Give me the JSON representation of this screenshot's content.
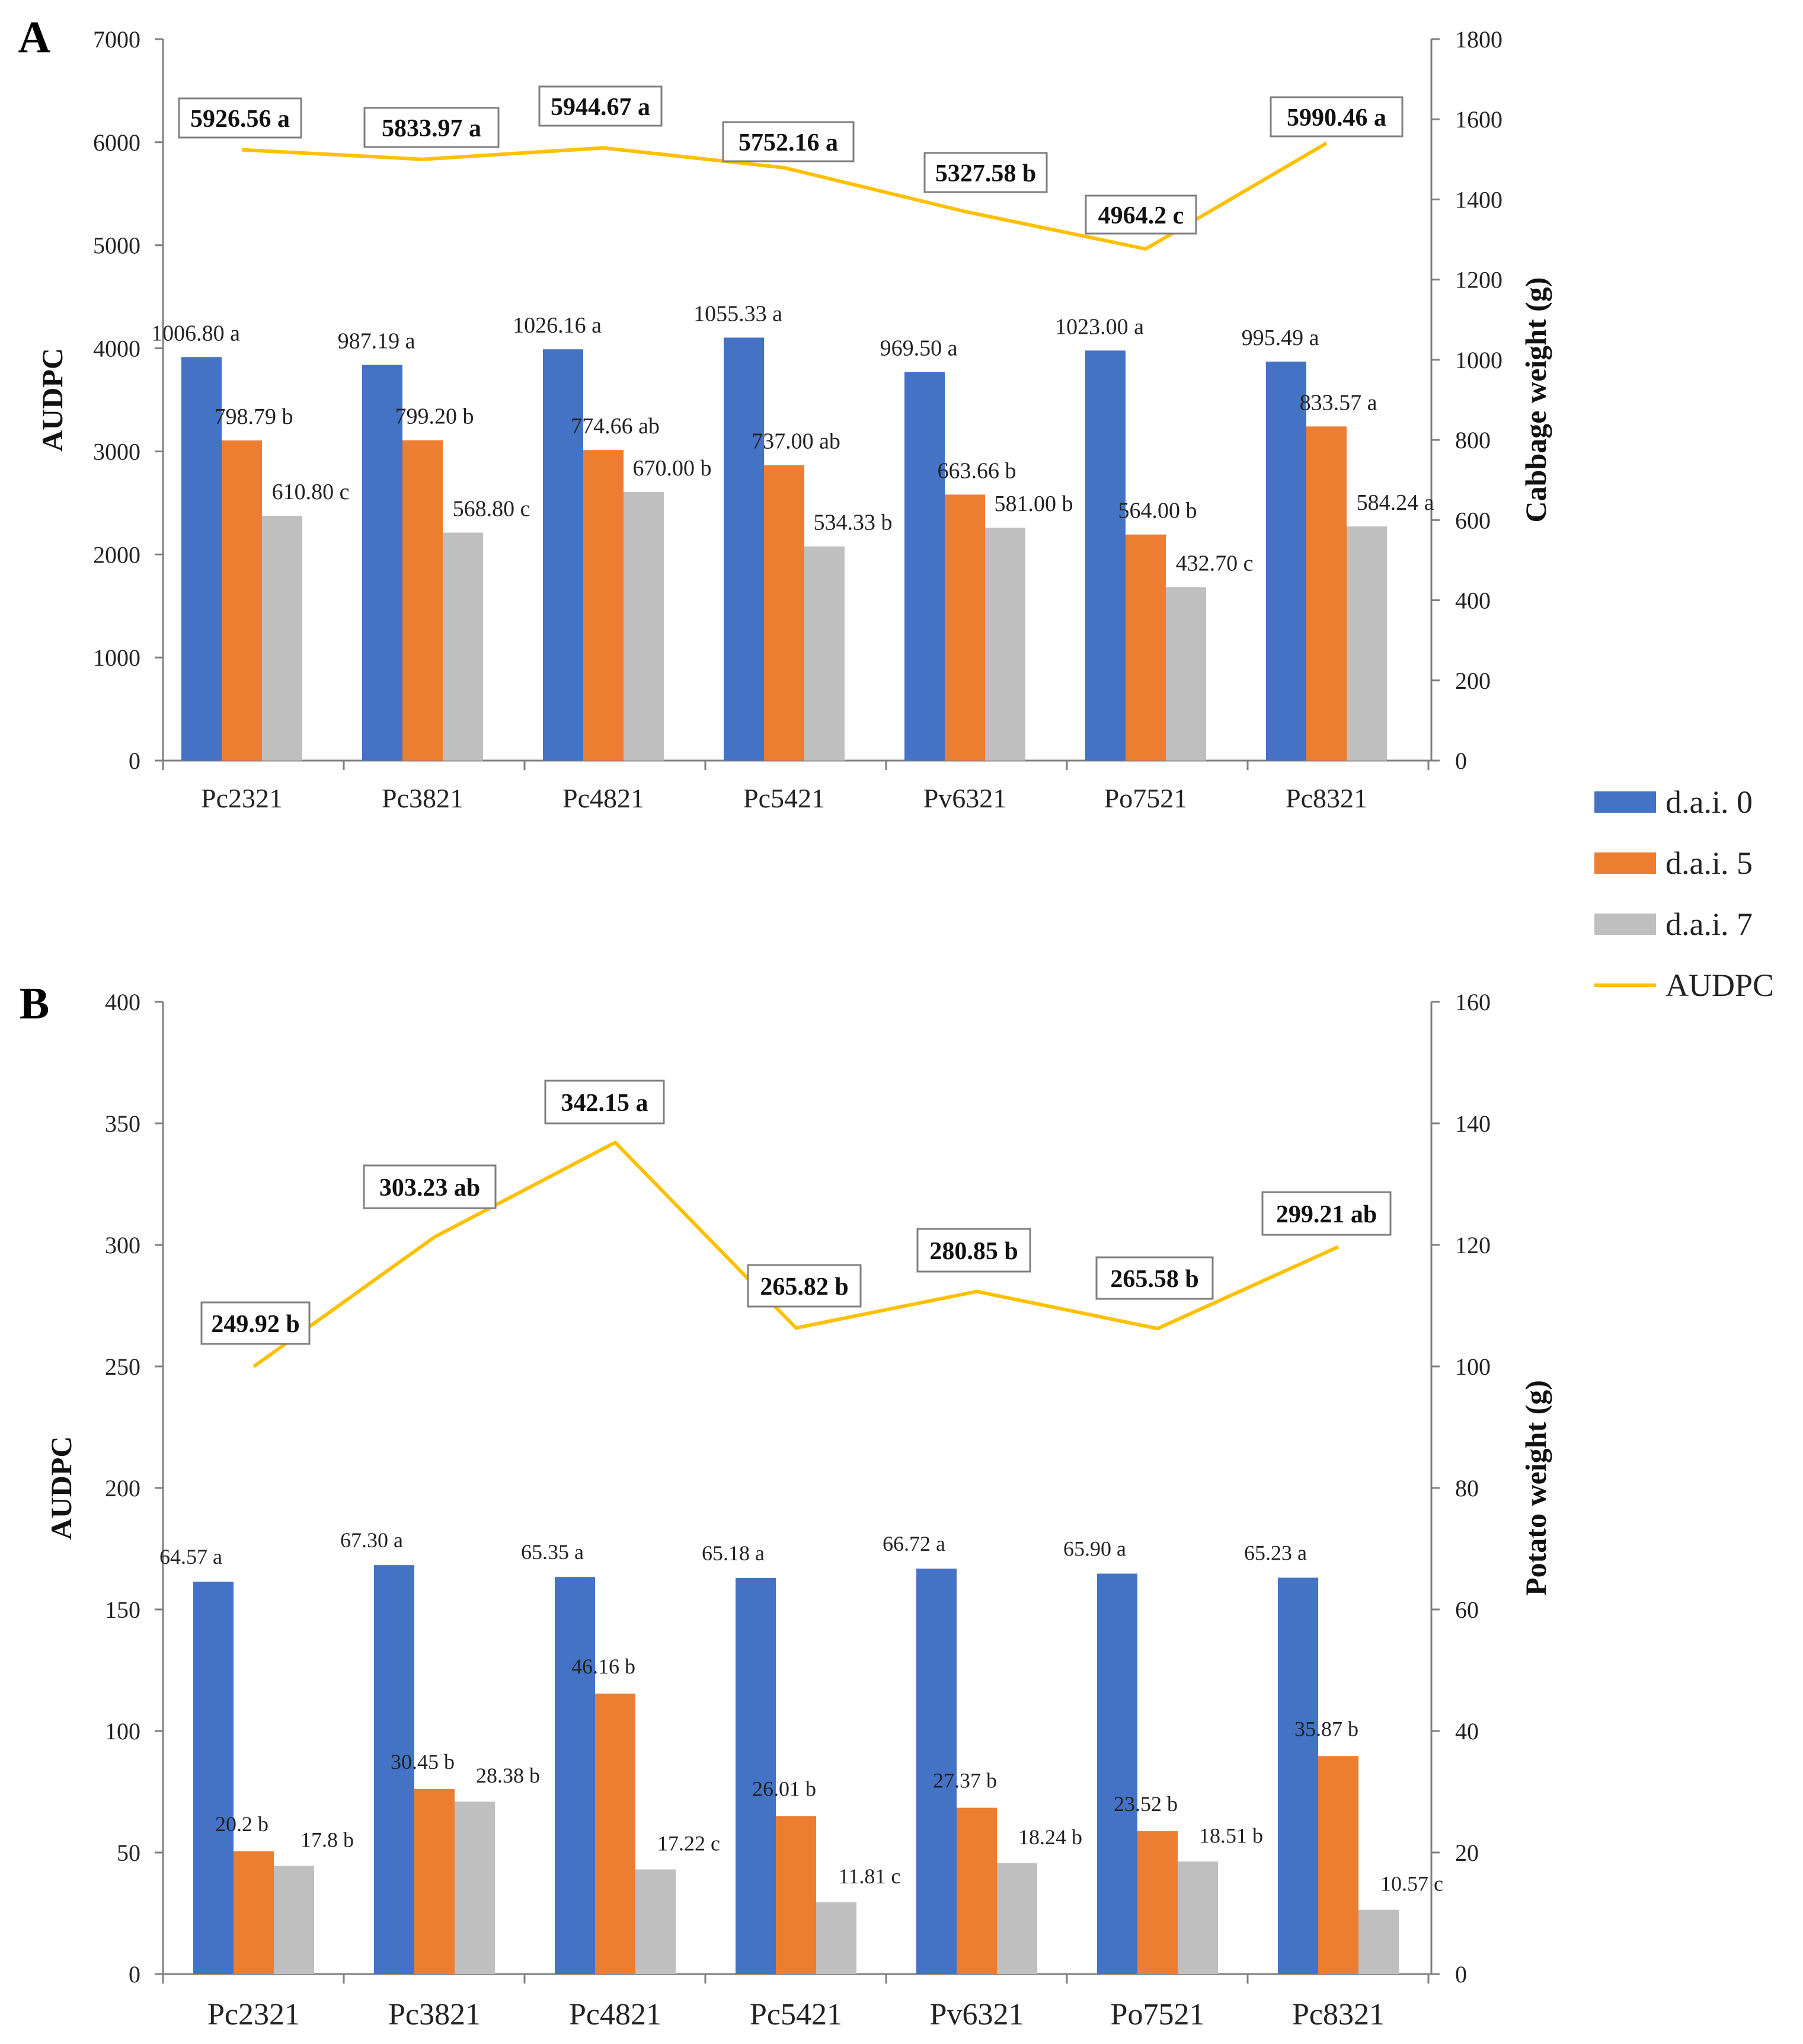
{
  "colors": {
    "dai0": "#4472C4",
    "dai5": "#ED7D31",
    "dai7": "#BFBFBF",
    "audpc": "#FFC000"
  },
  "legend": [
    {
      "key": "dai0",
      "label": "d.a.i. 0",
      "kind": "bar"
    },
    {
      "key": "dai5",
      "label": "d.a.i. 5",
      "kind": "bar"
    },
    {
      "key": "dai7",
      "label": "d.a.i. 7",
      "kind": "bar"
    },
    {
      "key": "audpc",
      "label": "AUDPC",
      "kind": "line"
    }
  ],
  "chart_data": [
    {
      "panel": "A",
      "type": "bar",
      "categories": [
        "Pc2321",
        "Pc3821",
        "Pc4821",
        "Pc5421",
        "Pv6321",
        "Po7521",
        "Pc8321"
      ],
      "ylabel": "AUDPC",
      "ylabel_right": "Cabbage weight (g)",
      "ylim": [
        0,
        7000
      ],
      "yticks": [
        "0",
        "1000",
        "2000",
        "3000",
        "4000",
        "5000",
        "6000",
        "7000"
      ],
      "ylim_right": [
        0,
        1800
      ],
      "yticks_right": [
        "0",
        "200",
        "400",
        "600",
        "800",
        "1000",
        "1200",
        "1400",
        "1600",
        "1800"
      ],
      "series": [
        {
          "key": "dai0",
          "name": "d.a.i. 0",
          "axis": "right",
          "values": [
            1006.8,
            987.19,
            1026.16,
            1055.33,
            969.5,
            1023.0,
            995.49
          ],
          "labels": [
            "1006.80 a",
            "987.19 a",
            "1026.16 a",
            "1055.33 a",
            "969.50 a",
            "1023.00 a",
            "995.49 a"
          ]
        },
        {
          "key": "dai5",
          "name": "d.a.i. 5",
          "axis": "right",
          "values": [
            798.79,
            799.2,
            774.66,
            737.0,
            663.66,
            564.0,
            833.57
          ],
          "labels": [
            "798.79 b",
            "799.20 b",
            "774.66 ab",
            "737.00 ab",
            "663.66 b",
            "564.00 b",
            "833.57 a"
          ]
        },
        {
          "key": "dai7",
          "name": "d.a.i. 7",
          "axis": "right",
          "values": [
            610.8,
            568.8,
            670.0,
            534.33,
            581.0,
            432.7,
            584.24
          ],
          "labels": [
            "610.80 c",
            "568.80 c",
            "670.00 b",
            "534.33 b",
            "581.00 b",
            "432.70 c",
            "584.24 a"
          ]
        },
        {
          "key": "audpc",
          "name": "AUDPC",
          "type": "line",
          "axis": "left",
          "values": [
            5926.56,
            5833.97,
            5944.67,
            5752.16,
            5327.58,
            4964.2,
            5990.46
          ],
          "labels": [
            "5926.56 a",
            "5833.97 a",
            "5944.67 a",
            "5752.16 a",
            "5327.58 b",
            "4964.2 c",
            "5990.46 a"
          ]
        }
      ]
    },
    {
      "panel": "B",
      "type": "bar",
      "categories": [
        "Pc2321",
        "Pc3821",
        "Pc4821",
        "Pc5421",
        "Pv6321",
        "Po7521",
        "Pc8321"
      ],
      "ylabel": "AUDPC",
      "ylabel_right": "Potato weight (g)",
      "ylim": [
        0,
        400
      ],
      "yticks": [
        "0",
        "50",
        "100",
        "150",
        "200",
        "250",
        "300",
        "350",
        "400"
      ],
      "ylim_right": [
        0,
        160
      ],
      "yticks_right": [
        "0",
        "20",
        "40",
        "60",
        "80",
        "100",
        "120",
        "140",
        "160"
      ],
      "series": [
        {
          "key": "dai0",
          "name": "d.a.i. 0",
          "axis": "right",
          "values": [
            64.57,
            67.3,
            65.35,
            65.18,
            66.72,
            65.9,
            65.23
          ],
          "labels": [
            "64.57 a",
            "67.30 a",
            "65.35 a",
            "65.18 a",
            "66.72 a",
            "65.90 a",
            "65.23 a"
          ]
        },
        {
          "key": "dai5",
          "name": "d.a.i. 5",
          "axis": "right",
          "values": [
            20.2,
            30.45,
            46.16,
            26.01,
            27.37,
            23.52,
            35.87
          ],
          "labels": [
            "20.2 b",
            "30.45 b",
            "46.16 b",
            "26.01 b",
            "27.37 b",
            "23.52 b",
            "35.87 b"
          ]
        },
        {
          "key": "dai7",
          "name": "d.a.i. 7",
          "axis": "right",
          "values": [
            17.8,
            28.38,
            17.22,
            11.81,
            18.24,
            18.51,
            10.57
          ],
          "labels": [
            "17.8 b",
            "28.38 b",
            "17.22 c",
            "11.81 c",
            "18.24 b",
            "18.51 b",
            "10.57 c"
          ]
        },
        {
          "key": "audpc",
          "name": "AUDPC",
          "type": "line",
          "axis": "left",
          "values": [
            249.92,
            303.23,
            342.15,
            265.82,
            280.85,
            265.58,
            299.21
          ],
          "labels": [
            "249.92 b",
            "303.23 ab",
            "342.15 a",
            "265.82 b",
            "280.85 b",
            "265.58 b",
            "299.21 ab"
          ]
        }
      ]
    }
  ]
}
